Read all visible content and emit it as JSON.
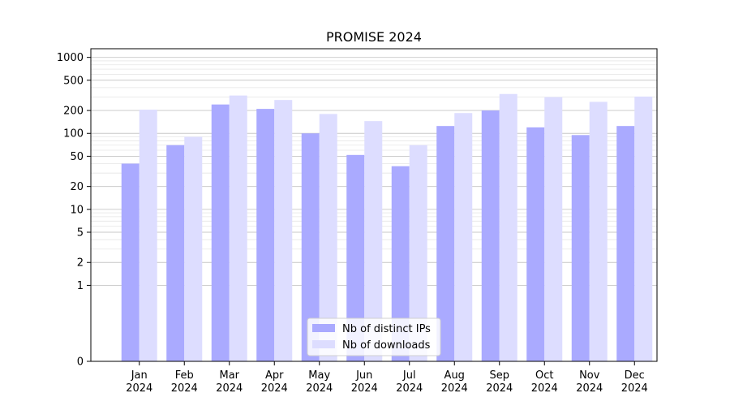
{
  "chart_data": {
    "type": "bar",
    "title": "PROMISE 2024",
    "xlabel": "",
    "ylabel": "",
    "y_scale": "symlog",
    "ylim": [
      0,
      1300
    ],
    "y_ticks": [
      0,
      1,
      2,
      5,
      10,
      20,
      50,
      100,
      200,
      500,
      1000
    ],
    "y_tick_labels": [
      "0",
      "1",
      "2",
      "5",
      "10",
      "20",
      "50",
      "100",
      "200",
      "500",
      "1000"
    ],
    "grid": "horizontal",
    "legend_position": "bottom-center",
    "categories": [
      [
        "Jan",
        "2024"
      ],
      [
        "Feb",
        "2024"
      ],
      [
        "Mar",
        "2024"
      ],
      [
        "Apr",
        "2024"
      ],
      [
        "May",
        "2024"
      ],
      [
        "Jun",
        "2024"
      ],
      [
        "Jul",
        "2024"
      ],
      [
        "Aug",
        "2024"
      ],
      [
        "Sep",
        "2024"
      ],
      [
        "Oct",
        "2024"
      ],
      [
        "Nov",
        "2024"
      ],
      [
        "Dec",
        "2024"
      ]
    ],
    "series": [
      {
        "name": "Nb of distinct IPs",
        "color": "#aaaaff",
        "values": [
          40,
          70,
          240,
          210,
          100,
          52,
          37,
          125,
          200,
          120,
          95,
          125
        ]
      },
      {
        "name": "Nb of downloads",
        "color": "#ddddff",
        "values": [
          205,
          90,
          315,
          275,
          180,
          145,
          70,
          185,
          330,
          300,
          260,
          305
        ]
      }
    ]
  }
}
